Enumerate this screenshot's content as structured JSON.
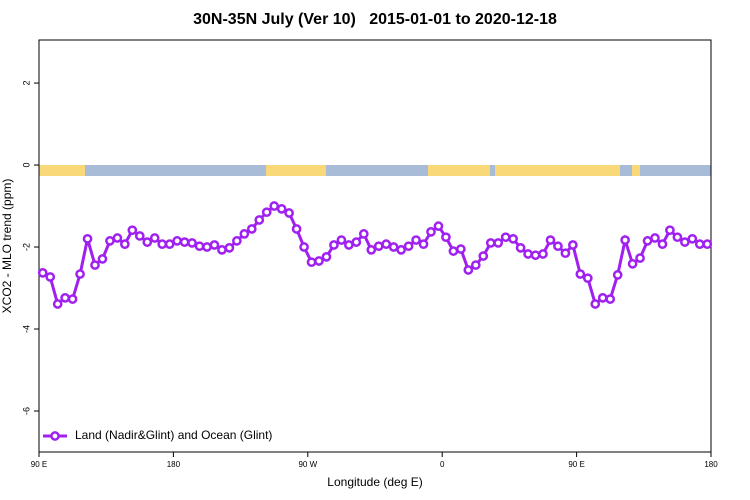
{
  "chart_data": {
    "type": "line",
    "title": "30N-35N July (Ver 10)   2015-01-01 to 2020-12-18",
    "x_label": "Longitude (deg E)",
    "y_label": "XCO2 - MLO trend (ppm)",
    "xlim": [
      90,
      540
    ],
    "xticks": [
      {
        "value": 90,
        "label": "90 E"
      },
      {
        "value": 180,
        "label": "180"
      },
      {
        "value": 270,
        "label": "90 W"
      },
      {
        "value": 360,
        "label": "0"
      },
      {
        "value": 450,
        "label": "90 E"
      },
      {
        "value": 540,
        "label": "180"
      }
    ],
    "ylim": [
      -7,
      3.05
    ],
    "yticks": [
      2,
      0,
      -2,
      -4,
      -6
    ],
    "legend": "bottomleft",
    "x": [
      92.5,
      97.5,
      102.5,
      107.5,
      112.5,
      117.5,
      122.5,
      127.5,
      132.5,
      137.5,
      142.5,
      147.5,
      152.5,
      157.5,
      162.5,
      167.5,
      172.5,
      177.5,
      182.5,
      187.5,
      192.5,
      197.5,
      202.5,
      207.5,
      212.5,
      217.5,
      222.5,
      227.5,
      232.5,
      237.5,
      242.5,
      247.5,
      252.5,
      257.5,
      262.5,
      267.5,
      272.5,
      277.5,
      282.5,
      287.5,
      292.5,
      297.5,
      302.5,
      307.5,
      312.5,
      317.5,
      322.5,
      327.5,
      332.5,
      337.5,
      342.5,
      347.5,
      352.5,
      357.5,
      362.5,
      367.5,
      372.5,
      377.5,
      382.5,
      387.5,
      392.5,
      397.5,
      402.5,
      407.5,
      412.5,
      417.5,
      422.5,
      427.5,
      432.5,
      437.5,
      442.5,
      447.5,
      452.5,
      457.5,
      462.5,
      467.5,
      472.5,
      477.5,
      482.5,
      487.5,
      492.5,
      497.5,
      502.5,
      507.5,
      512.5,
      517.5,
      522.5,
      527.5,
      532.5,
      537.5
    ],
    "series": [
      {
        "name": "Land (Nadir&Glint) and Ocean (Glint)",
        "color": "#a020f0",
        "values": [
          -2.63,
          -2.73,
          -3.39,
          -3.24,
          -3.27,
          -2.66,
          -1.8,
          -2.44,
          -2.29,
          -1.85,
          -1.78,
          -1.93,
          -1.59,
          -1.73,
          -1.88,
          -1.78,
          -1.93,
          -1.93,
          -1.85,
          -1.88,
          -1.9,
          -1.98,
          -2.0,
          -1.95,
          -2.07,
          -2.02,
          -1.85,
          -1.68,
          -1.56,
          -1.34,
          -1.15,
          -1.0,
          -1.07,
          -1.17,
          -1.56,
          -2.0,
          -2.37,
          -2.34,
          -2.24,
          -1.95,
          -1.83,
          -1.95,
          -1.88,
          -1.68,
          -2.07,
          -1.98,
          -1.93,
          -2.0,
          -2.07,
          -1.98,
          -1.83,
          -1.93,
          -1.63,
          -1.49,
          -1.76,
          -2.1,
          -2.05,
          -2.56,
          -2.44,
          -2.22,
          -1.9,
          -1.9,
          -1.76,
          -1.8,
          -2.02,
          -2.17,
          -2.2,
          -2.17,
          -1.83,
          -1.98,
          -2.15,
          -1.95,
          -2.66,
          -2.76,
          -3.39,
          -3.24,
          -3.27,
          -2.68,
          -1.83,
          -2.41,
          -2.27,
          -1.85,
          -1.78,
          -1.93,
          -1.59,
          -1.76,
          -1.88,
          -1.8,
          -1.93,
          -1.93
        ]
      }
    ]
  }
}
